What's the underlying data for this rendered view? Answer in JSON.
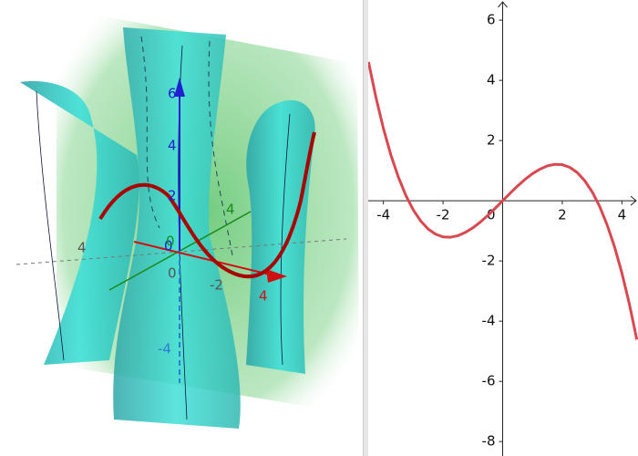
{
  "view3d": {
    "labels": [
      {
        "text": "6",
        "color": "#2020d0"
      },
      {
        "text": "4",
        "color": "#2020d0"
      },
      {
        "text": "2",
        "color": "#2020d0"
      },
      {
        "text": "0",
        "color": "#2020d0"
      },
      {
        "text": "-4",
        "color": "#2a7fd0"
      },
      {
        "text": "4",
        "color": "#555555"
      },
      {
        "text": "0",
        "color": "#555555"
      },
      {
        "text": "-2",
        "color": "#555555"
      },
      {
        "text": "4",
        "color": "#d01010"
      },
      {
        "text": "4",
        "color": "#1a8a1a"
      },
      {
        "text": "0",
        "color": "#1a8a1a"
      }
    ]
  },
  "chart_data": {
    "type": "line",
    "x": [
      -4.5,
      -4.25,
      -4,
      -3.75,
      -3.5,
      -3.25,
      -3,
      -2.75,
      -2.5,
      -2.25,
      -2,
      -1.75,
      -1.5,
      -1.25,
      -1,
      -0.75,
      -0.5,
      -0.25,
      0,
      0.25,
      0.5,
      0.75,
      1,
      1.25,
      1.5,
      1.75,
      2,
      2.25,
      2.5,
      2.75,
      3,
      3.25,
      3.5,
      3.75,
      4,
      4.25,
      4.5
    ],
    "series": [
      {
        "color": "#d9484f",
        "values": [
          4.61,
          3.43,
          2.4,
          1.52,
          0.79,
          0.18,
          -0.3,
          -0.67,
          -0.94,
          -1.11,
          -1.2,
          -1.21,
          -1.16,
          -1.05,
          -0.9,
          -0.71,
          -0.49,
          -0.25,
          0,
          0.25,
          0.49,
          0.71,
          0.9,
          1.05,
          1.16,
          1.21,
          1.2,
          1.11,
          0.94,
          0.67,
          0.3,
          -0.18,
          -0.79,
          -1.52,
          -2.4,
          -3.43,
          -4.61
        ]
      }
    ],
    "xlim": [
      -4.51,
      4.54
    ],
    "ylim": [
      -8.48,
      6.67
    ],
    "xticks": [
      -4,
      -2,
      0,
      2,
      4
    ],
    "yticks": [
      -8,
      -6,
      -4,
      -2,
      2,
      4,
      6
    ]
  }
}
